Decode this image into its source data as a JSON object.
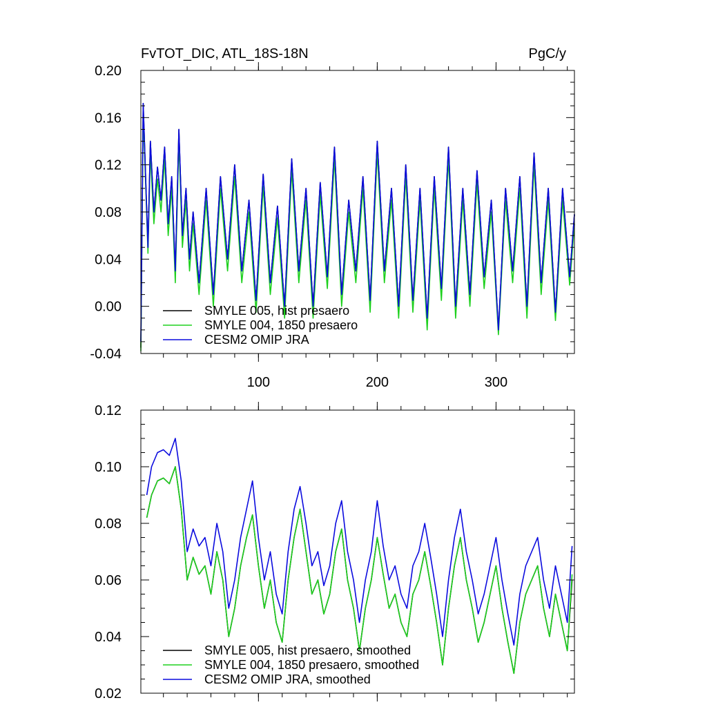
{
  "chart_data": [
    {
      "type": "line",
      "title_left": "FvTOT_DIC, ATL_18S-18N",
      "title_right": "PgC/y",
      "xlabel": "",
      "ylabel": "",
      "xlim": [
        1,
        366
      ],
      "ylim": [
        -0.04,
        0.2
      ],
      "x_ticks": [
        100,
        200,
        300
      ],
      "x_tick_labels": [
        "100",
        "200",
        "300"
      ],
      "y_ticks": [
        -0.04,
        0.0,
        0.04,
        0.08,
        0.12,
        0.16,
        0.2
      ],
      "y_tick_labels": [
        "-0.04",
        "0.00",
        "0.04",
        "0.08",
        "0.12",
        "0.16",
        "0.20"
      ],
      "legend_position": "bottom-left",
      "x": [
        1,
        3,
        7,
        9,
        12,
        15,
        18,
        21,
        24,
        27,
        30,
        33,
        36,
        39,
        42,
        45,
        50,
        56,
        62,
        68,
        74,
        80,
        86,
        92,
        98,
        104,
        110,
        116,
        122,
        128,
        134,
        140,
        146,
        152,
        158,
        164,
        170,
        176,
        182,
        188,
        194,
        200,
        206,
        212,
        218,
        224,
        230,
        236,
        242,
        248,
        254,
        260,
        266,
        272,
        278,
        284,
        290,
        296,
        302,
        308,
        314,
        320,
        326,
        332,
        338,
        344,
        350,
        356,
        362,
        366
      ],
      "series": [
        {
          "name": "SMYLE 005, hist presaero",
          "color": "#000000",
          "values": [
            -0.035,
            0.172,
            0.05,
            0.14,
            0.08,
            0.118,
            0.09,
            0.135,
            0.07,
            0.11,
            0.03,
            0.15,
            0.06,
            0.1,
            0.04,
            0.08,
            0.02,
            0.1,
            0.01,
            0.11,
            0.04,
            0.12,
            0.03,
            0.09,
            0.005,
            0.112,
            0.02,
            0.085,
            0.0,
            0.125,
            0.03,
            0.1,
            0.0,
            0.105,
            0.025,
            0.135,
            0.01,
            0.09,
            0.03,
            0.11,
            0.005,
            0.14,
            0.03,
            0.1,
            0.0,
            0.12,
            0.005,
            0.1,
            -0.01,
            0.11,
            0.015,
            0.135,
            0.0,
            0.1,
            0.01,
            0.115,
            0.025,
            0.09,
            -0.02,
            0.1,
            0.03,
            0.11,
            0.0,
            0.13,
            0.02,
            0.1,
            -0.005,
            0.1,
            0.025,
            0.078
          ]
        },
        {
          "name": "SMYLE 004, 1850 presaero",
          "color": "#1ed01e",
          "values": [
            -0.038,
            0.165,
            0.045,
            0.13,
            0.07,
            0.108,
            0.08,
            0.125,
            0.06,
            0.1,
            0.02,
            0.14,
            0.05,
            0.09,
            0.03,
            0.07,
            0.01,
            0.09,
            0.0,
            0.1,
            0.03,
            0.11,
            0.02,
            0.08,
            -0.005,
            0.102,
            0.01,
            0.075,
            -0.01,
            0.115,
            0.02,
            0.09,
            -0.01,
            0.095,
            0.015,
            0.125,
            0.0,
            0.08,
            0.02,
            0.1,
            -0.005,
            0.13,
            0.02,
            0.09,
            -0.01,
            0.11,
            -0.005,
            0.09,
            -0.02,
            0.1,
            0.005,
            0.125,
            -0.01,
            0.09,
            0.0,
            0.105,
            0.015,
            0.08,
            -0.024,
            0.09,
            0.02,
            0.1,
            -0.01,
            0.12,
            0.01,
            0.09,
            -0.012,
            0.09,
            0.018,
            0.07
          ]
        },
        {
          "name": "CESM2 OMIP JRA",
          "color": "#0a0ade",
          "values": [
            -0.03,
            0.172,
            0.05,
            0.14,
            0.08,
            0.118,
            0.09,
            0.135,
            0.07,
            0.11,
            0.03,
            0.15,
            0.06,
            0.1,
            0.04,
            0.08,
            0.02,
            0.1,
            0.01,
            0.11,
            0.04,
            0.12,
            0.03,
            0.09,
            0.005,
            0.112,
            0.02,
            0.085,
            0.0,
            0.125,
            0.03,
            0.1,
            0.0,
            0.105,
            0.025,
            0.135,
            0.01,
            0.09,
            0.03,
            0.11,
            0.005,
            0.14,
            0.03,
            0.1,
            0.0,
            0.12,
            0.005,
            0.1,
            -0.01,
            0.11,
            0.015,
            0.135,
            0.0,
            0.1,
            0.01,
            0.115,
            0.025,
            0.09,
            -0.02,
            0.1,
            0.03,
            0.11,
            0.0,
            0.13,
            0.02,
            0.1,
            -0.005,
            0.1,
            0.025,
            0.078
          ]
        }
      ]
    },
    {
      "type": "line",
      "title_left": "",
      "title_right": "",
      "xlabel": "",
      "ylabel": "",
      "xlim": [
        1,
        366
      ],
      "ylim": [
        0.02,
        0.12
      ],
      "x_ticks": [
        100,
        200,
        300
      ],
      "x_tick_labels": [],
      "y_ticks": [
        0.02,
        0.04,
        0.06,
        0.08,
        0.1,
        0.12
      ],
      "y_tick_labels": [
        "0.02",
        "0.04",
        "0.06",
        "0.08",
        "0.10",
        "0.12"
      ],
      "legend_position": "bottom-left",
      "x": [
        6,
        10,
        15,
        20,
        25,
        30,
        35,
        40,
        45,
        50,
        55,
        60,
        65,
        70,
        75,
        80,
        85,
        90,
        95,
        100,
        105,
        110,
        115,
        120,
        125,
        130,
        135,
        140,
        145,
        150,
        155,
        160,
        165,
        170,
        175,
        180,
        185,
        190,
        195,
        200,
        205,
        210,
        215,
        220,
        225,
        230,
        235,
        240,
        245,
        250,
        255,
        260,
        265,
        270,
        275,
        280,
        285,
        290,
        295,
        300,
        305,
        310,
        315,
        320,
        325,
        330,
        335,
        340,
        345,
        350,
        355,
        360,
        364
      ],
      "series": [
        {
          "name": "SMYLE 005, hist presaero, smoothed",
          "color": "#000000",
          "values": [
            0.082,
            0.09,
            0.095,
            0.096,
            0.094,
            0.1,
            0.085,
            0.06,
            0.068,
            0.062,
            0.065,
            0.055,
            0.07,
            0.06,
            0.04,
            0.05,
            0.065,
            0.075,
            0.083,
            0.065,
            0.05,
            0.06,
            0.045,
            0.038,
            0.06,
            0.075,
            0.085,
            0.07,
            0.055,
            0.06,
            0.048,
            0.055,
            0.07,
            0.078,
            0.06,
            0.05,
            0.035,
            0.05,
            0.06,
            0.075,
            0.062,
            0.05,
            0.055,
            0.045,
            0.04,
            0.055,
            0.06,
            0.07,
            0.058,
            0.045,
            0.03,
            0.05,
            0.065,
            0.075,
            0.06,
            0.05,
            0.038,
            0.045,
            0.055,
            0.065,
            0.05,
            0.038,
            0.027,
            0.045,
            0.055,
            0.06,
            0.065,
            0.05,
            0.04,
            0.055,
            0.045,
            0.035,
            0.06
          ]
        },
        {
          "name": "SMYLE 004, 1850 presaero, smoothed",
          "color": "#1ed01e",
          "values": [
            0.082,
            0.09,
            0.095,
            0.096,
            0.094,
            0.1,
            0.085,
            0.06,
            0.068,
            0.062,
            0.065,
            0.055,
            0.07,
            0.06,
            0.04,
            0.05,
            0.065,
            0.075,
            0.083,
            0.065,
            0.05,
            0.06,
            0.045,
            0.038,
            0.06,
            0.075,
            0.085,
            0.07,
            0.055,
            0.06,
            0.048,
            0.055,
            0.07,
            0.078,
            0.06,
            0.05,
            0.035,
            0.05,
            0.06,
            0.075,
            0.062,
            0.05,
            0.055,
            0.045,
            0.04,
            0.055,
            0.06,
            0.07,
            0.058,
            0.045,
            0.03,
            0.05,
            0.065,
            0.075,
            0.06,
            0.05,
            0.038,
            0.045,
            0.055,
            0.065,
            0.05,
            0.038,
            0.027,
            0.045,
            0.055,
            0.06,
            0.065,
            0.05,
            0.04,
            0.055,
            0.045,
            0.035,
            0.062
          ]
        },
        {
          "name": "CESM2 OMIP JRA, smoothed",
          "color": "#0a0ade",
          "values": [
            0.09,
            0.1,
            0.105,
            0.106,
            0.104,
            0.11,
            0.095,
            0.07,
            0.078,
            0.072,
            0.075,
            0.065,
            0.08,
            0.07,
            0.05,
            0.06,
            0.075,
            0.085,
            0.095,
            0.075,
            0.06,
            0.07,
            0.055,
            0.048,
            0.07,
            0.085,
            0.093,
            0.08,
            0.065,
            0.07,
            0.058,
            0.065,
            0.08,
            0.088,
            0.07,
            0.06,
            0.045,
            0.06,
            0.07,
            0.088,
            0.072,
            0.06,
            0.065,
            0.055,
            0.05,
            0.065,
            0.07,
            0.08,
            0.068,
            0.055,
            0.04,
            0.06,
            0.075,
            0.085,
            0.07,
            0.06,
            0.048,
            0.055,
            0.065,
            0.075,
            0.06,
            0.048,
            0.037,
            0.055,
            0.065,
            0.07,
            0.075,
            0.06,
            0.05,
            0.065,
            0.055,
            0.045,
            0.072
          ]
        }
      ]
    }
  ]
}
